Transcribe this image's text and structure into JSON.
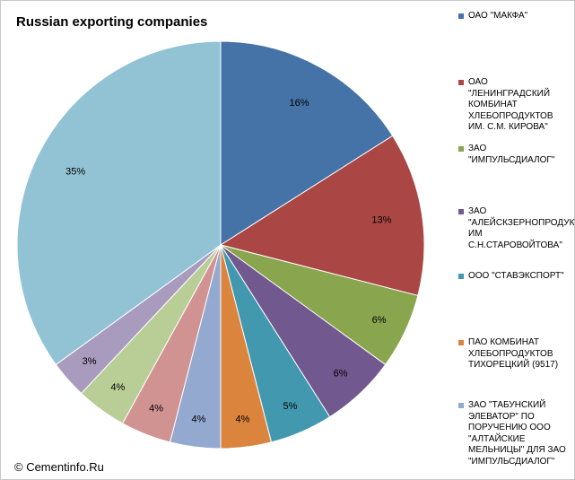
{
  "chart_data": {
    "type": "pie",
    "title": "Russian exporting companies",
    "slices": [
      {
        "label": "ОАО \"МАКФА\"",
        "value": 16,
        "display": "16%",
        "color": "#4572a7"
      },
      {
        "label": "ОАО \"ЛЕНИНГРАДСКИЙ КОМБИНАТ ХЛЕБОПРОДУКТОВ ИМ. С.М. КИРОВА\"",
        "value": 13,
        "display": "13%",
        "color": "#aa4643"
      },
      {
        "label": "ЗАО \"ИМПУЛЬСДИАЛОГ\"",
        "value": 6,
        "display": "6%",
        "color": "#89a54e"
      },
      {
        "label": "ЗАО \"АЛЕЙСКЗЕРНОПРОДУКТ ИМ С.Н.СТАРОВОЙТОВА\"",
        "value": 6,
        "display": "6%",
        "color": "#71588f"
      },
      {
        "label": "ООО \"СТАВЭКСПОРТ\"",
        "value": 5,
        "display": "5%",
        "color": "#4198af"
      },
      {
        "label": "ПАО КОМБИНАТ ХЛЕБОПРОДУКТОВ ТИХОРЕЦКИЙ (9517)",
        "value": 4,
        "display": "4%",
        "color": "#db843d"
      },
      {
        "label": "ЗАО \"ТАБУНСКИЙ ЭЛЕВАТОР\" ПО ПОРУЧЕНИЮ ООО \"АЛТАЙСКИЕ МЕЛЬНИЦЫ\" ДЛЯ ЗАО \"ИМПУЛЬСДИАЛОГ\"",
        "value": 4,
        "display": "4%",
        "color": "#93a9cf"
      },
      {
        "label": "",
        "value": 4,
        "display": "4%",
        "color": "#d19392"
      },
      {
        "label": "",
        "value": 4,
        "display": "4%",
        "color": "#b9cd96"
      },
      {
        "label": "",
        "value": 3,
        "display": "3%",
        "color": "#a99bbd"
      },
      {
        "label": "",
        "value": 35,
        "display": "35%",
        "color": "#92c3d5"
      }
    ],
    "legend_position": "right"
  },
  "copyright": "© Cementinfo.Ru"
}
